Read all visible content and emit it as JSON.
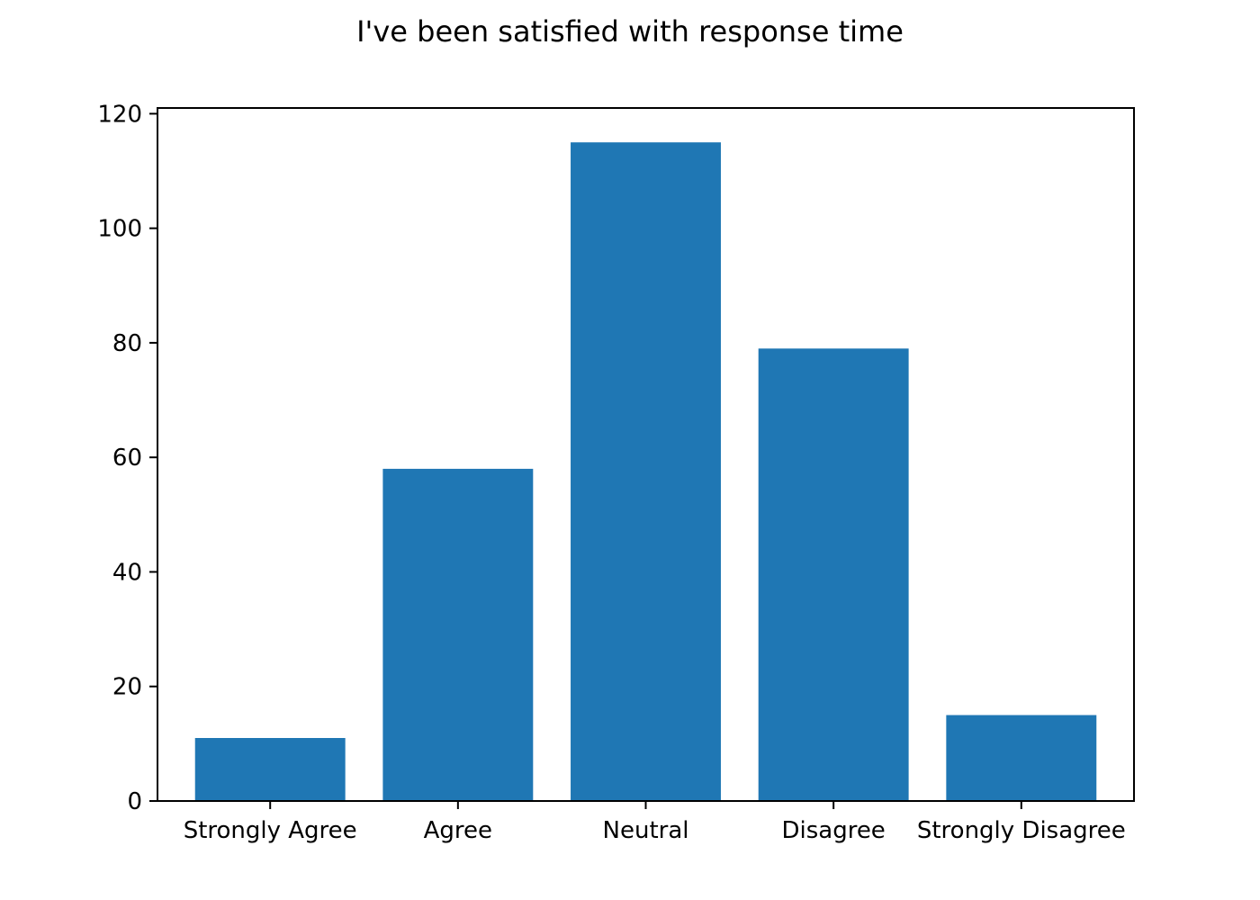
{
  "chart_data": {
    "type": "bar",
    "title": "I've been satisfied with response time",
    "xlabel": "",
    "ylabel": "",
    "categories": [
      "Strongly Agree",
      "Agree",
      "Neutral",
      "Disagree",
      "Strongly Disagree"
    ],
    "values": [
      11,
      58,
      115,
      79,
      15
    ],
    "ylim": [
      0,
      121
    ],
    "yticks": [
      0,
      20,
      40,
      60,
      80,
      100,
      120
    ],
    "grid": false,
    "legend": "none",
    "bar_color": "#1f77b4",
    "axis_color": "#000000",
    "background_color": "#ffffff"
  }
}
